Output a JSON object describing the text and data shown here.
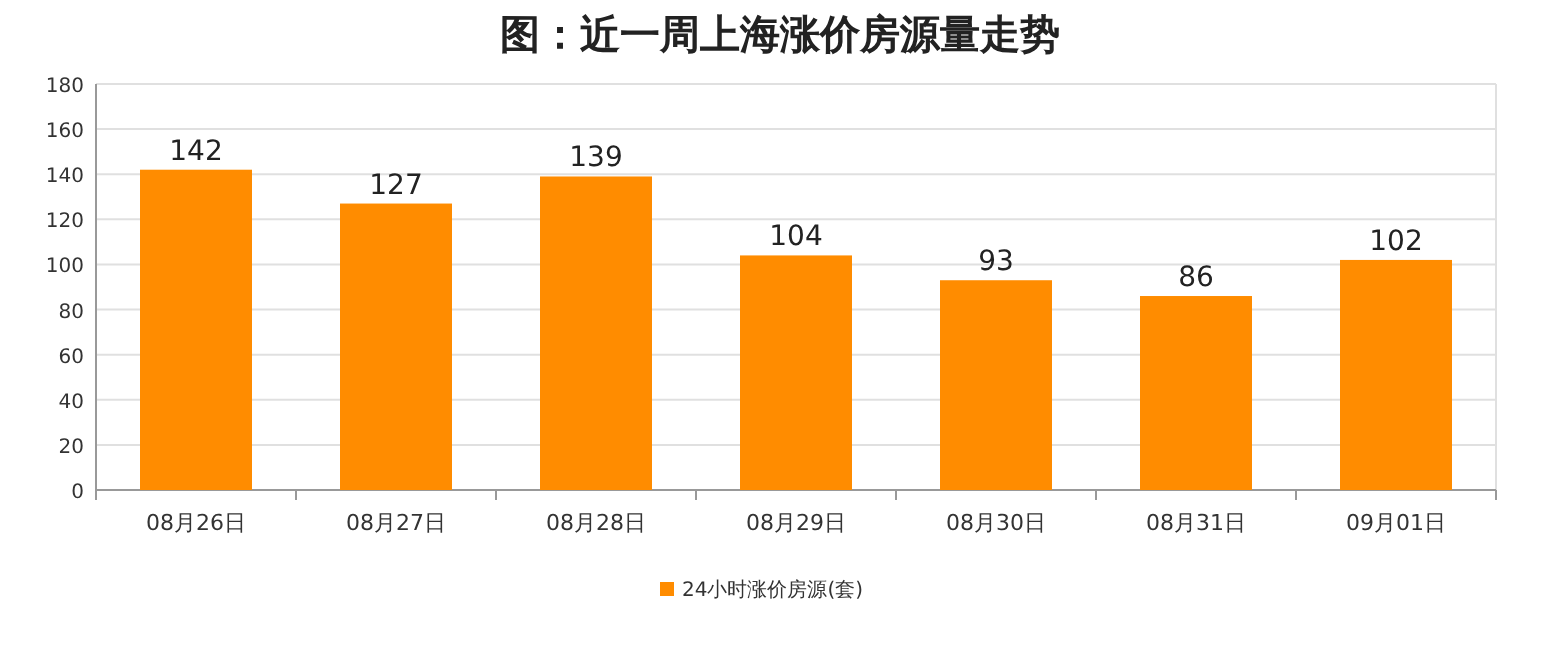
{
  "chart_data": {
    "type": "bar",
    "title": "图：近一周上海涨价房源量走势",
    "categories": [
      "08月26日",
      "08月27日",
      "08月28日",
      "08月29日",
      "08月30日",
      "08月31日",
      "09月01日"
    ],
    "series": [
      {
        "name": "24小时涨价房源(套)",
        "color": "#ff8c00",
        "values": [
          142,
          127,
          139,
          104,
          93,
          86,
          102
        ]
      }
    ],
    "ylim": [
      0,
      180
    ],
    "yticks": [
      0,
      20,
      40,
      60,
      80,
      100,
      120,
      140,
      160,
      180
    ],
    "grid": "y",
    "legend": "bottom",
    "data_labels": true
  }
}
